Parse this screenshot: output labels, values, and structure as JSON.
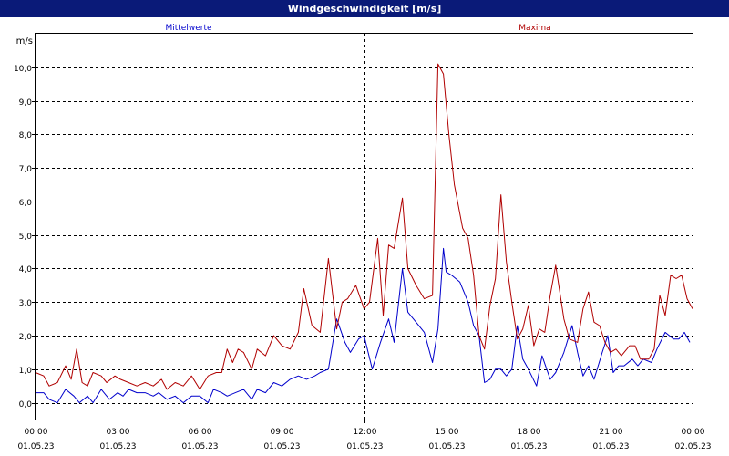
{
  "window": {
    "title": "Windgeschwindigkeit [m/s]"
  },
  "chart_data": {
    "type": "line",
    "title": "Windgeschwindigkeit [m/s]",
    "ylabel": "m/s",
    "ylim": [
      -0.5,
      11
    ],
    "yticks": [
      "0,0",
      "1,0",
      "2,0",
      "3,0",
      "4,0",
      "5,0",
      "6,0",
      "7,0",
      "8,0",
      "9,0",
      "10,0"
    ],
    "x_time_range_hours": [
      0,
      24
    ],
    "x_ticks": [
      {
        "time": "00:00",
        "date": "01.05.23"
      },
      {
        "time": "03:00",
        "date": "01.05.23"
      },
      {
        "time": "06:00",
        "date": "01.05.23"
      },
      {
        "time": "09:00",
        "date": "01.05.23"
      },
      {
        "time": "12:00",
        "date": "01.05.23"
      },
      {
        "time": "15:00",
        "date": "01.05.23"
      },
      {
        "time": "18:00",
        "date": "01.05.23"
      },
      {
        "time": "21:00",
        "date": "01.05.23"
      },
      {
        "time": "00:00",
        "date": "02.05.23"
      }
    ],
    "grid": true,
    "legend_placement": "top",
    "series": [
      {
        "name": "Mittelwerte",
        "color": "#0000cc",
        "points": [
          [
            0,
            0.3
          ],
          [
            0.3,
            0.3
          ],
          [
            0.5,
            0.1
          ],
          [
            0.8,
            0.0
          ],
          [
            1.1,
            0.4
          ],
          [
            1.4,
            0.2
          ],
          [
            1.6,
            0.0
          ],
          [
            1.9,
            0.2
          ],
          [
            2.1,
            0.0
          ],
          [
            2.4,
            0.4
          ],
          [
            2.7,
            0.1
          ],
          [
            3.0,
            0.3
          ],
          [
            3.2,
            0.2
          ],
          [
            3.4,
            0.4
          ],
          [
            3.7,
            0.3
          ],
          [
            4.0,
            0.3
          ],
          [
            4.3,
            0.2
          ],
          [
            4.5,
            0.3
          ],
          [
            4.8,
            0.1
          ],
          [
            5.1,
            0.2
          ],
          [
            5.4,
            0.0
          ],
          [
            5.7,
            0.2
          ],
          [
            6.0,
            0.2
          ],
          [
            6.3,
            0.0
          ],
          [
            6.5,
            0.4
          ],
          [
            6.8,
            0.3
          ],
          [
            7.0,
            0.2
          ],
          [
            7.3,
            0.3
          ],
          [
            7.6,
            0.4
          ],
          [
            7.9,
            0.1
          ],
          [
            8.1,
            0.4
          ],
          [
            8.4,
            0.3
          ],
          [
            8.7,
            0.6
          ],
          [
            9.0,
            0.5
          ],
          [
            9.3,
            0.7
          ],
          [
            9.6,
            0.8
          ],
          [
            9.9,
            0.7
          ],
          [
            10.2,
            0.8
          ],
          [
            10.4,
            0.9
          ],
          [
            10.7,
            1.0
          ],
          [
            11.0,
            2.5
          ],
          [
            11.3,
            1.8
          ],
          [
            11.5,
            1.5
          ],
          [
            11.8,
            1.9
          ],
          [
            12.0,
            2.0
          ],
          [
            12.3,
            1.0
          ],
          [
            12.6,
            1.8
          ],
          [
            12.9,
            2.5
          ],
          [
            13.1,
            1.8
          ],
          [
            13.4,
            4.0
          ],
          [
            13.6,
            2.7
          ],
          [
            13.9,
            2.4
          ],
          [
            14.2,
            2.1
          ],
          [
            14.5,
            1.2
          ],
          [
            14.7,
            2.2
          ],
          [
            14.9,
            4.6
          ],
          [
            15.0,
            3.9
          ],
          [
            15.2,
            3.8
          ],
          [
            15.5,
            3.6
          ],
          [
            15.8,
            3.0
          ],
          [
            16.0,
            2.3
          ],
          [
            16.2,
            2.0
          ],
          [
            16.4,
            0.6
          ],
          [
            16.6,
            0.7
          ],
          [
            16.8,
            1.0
          ],
          [
            17.0,
            1.0
          ],
          [
            17.2,
            0.8
          ],
          [
            17.4,
            1.0
          ],
          [
            17.6,
            2.3
          ],
          [
            17.8,
            1.3
          ],
          [
            18.0,
            1.0
          ],
          [
            18.3,
            0.5
          ],
          [
            18.5,
            1.4
          ],
          [
            18.8,
            0.7
          ],
          [
            19.0,
            0.9
          ],
          [
            19.3,
            1.5
          ],
          [
            19.6,
            2.3
          ],
          [
            19.8,
            1.5
          ],
          [
            20.0,
            0.8
          ],
          [
            20.2,
            1.1
          ],
          [
            20.4,
            0.7
          ],
          [
            20.7,
            1.5
          ],
          [
            20.9,
            2.0
          ],
          [
            21.1,
            0.9
          ],
          [
            21.3,
            1.1
          ],
          [
            21.5,
            1.1
          ],
          [
            21.8,
            1.3
          ],
          [
            22.0,
            1.1
          ],
          [
            22.2,
            1.3
          ],
          [
            22.5,
            1.2
          ],
          [
            22.7,
            1.6
          ],
          [
            23.0,
            2.1
          ],
          [
            23.3,
            1.9
          ],
          [
            23.5,
            1.9
          ],
          [
            23.7,
            2.1
          ],
          [
            23.9,
            1.8
          ]
        ]
      },
      {
        "name": "Maxima",
        "color": "#b00000",
        "points": [
          [
            0,
            0.9
          ],
          [
            0.3,
            0.8
          ],
          [
            0.5,
            0.5
          ],
          [
            0.8,
            0.6
          ],
          [
            1.1,
            1.1
          ],
          [
            1.3,
            0.7
          ],
          [
            1.5,
            1.6
          ],
          [
            1.7,
            0.6
          ],
          [
            1.9,
            0.5
          ],
          [
            2.1,
            0.9
          ],
          [
            2.4,
            0.8
          ],
          [
            2.6,
            0.6
          ],
          [
            2.9,
            0.8
          ],
          [
            3.1,
            0.7
          ],
          [
            3.4,
            0.6
          ],
          [
            3.7,
            0.5
          ],
          [
            4.0,
            0.6
          ],
          [
            4.3,
            0.5
          ],
          [
            4.6,
            0.7
          ],
          [
            4.8,
            0.4
          ],
          [
            5.1,
            0.6
          ],
          [
            5.4,
            0.5
          ],
          [
            5.7,
            0.8
          ],
          [
            6.0,
            0.4
          ],
          [
            6.3,
            0.8
          ],
          [
            6.6,
            0.9
          ],
          [
            6.8,
            0.9
          ],
          [
            7.0,
            1.6
          ],
          [
            7.2,
            1.2
          ],
          [
            7.4,
            1.6
          ],
          [
            7.6,
            1.5
          ],
          [
            7.9,
            1.0
          ],
          [
            8.1,
            1.6
          ],
          [
            8.4,
            1.4
          ],
          [
            8.7,
            2.0
          ],
          [
            9.0,
            1.7
          ],
          [
            9.3,
            1.6
          ],
          [
            9.6,
            2.1
          ],
          [
            9.8,
            3.4
          ],
          [
            10.1,
            2.3
          ],
          [
            10.4,
            2.1
          ],
          [
            10.7,
            4.3
          ],
          [
            11.0,
            2.2
          ],
          [
            11.2,
            3.0
          ],
          [
            11.4,
            3.1
          ],
          [
            11.7,
            3.5
          ],
          [
            12.0,
            2.8
          ],
          [
            12.2,
            3.0
          ],
          [
            12.5,
            4.9
          ],
          [
            12.7,
            2.6
          ],
          [
            12.9,
            4.7
          ],
          [
            13.1,
            4.6
          ],
          [
            13.4,
            6.1
          ],
          [
            13.6,
            4.0
          ],
          [
            13.9,
            3.5
          ],
          [
            14.2,
            3.1
          ],
          [
            14.5,
            3.2
          ],
          [
            14.7,
            10.1
          ],
          [
            14.9,
            9.8
          ],
          [
            15.1,
            8.0
          ],
          [
            15.3,
            6.5
          ],
          [
            15.6,
            5.2
          ],
          [
            15.8,
            4.9
          ],
          [
            16.0,
            3.8
          ],
          [
            16.2,
            2.0
          ],
          [
            16.4,
            1.6
          ],
          [
            16.6,
            2.9
          ],
          [
            16.8,
            3.7
          ],
          [
            17.0,
            6.2
          ],
          [
            17.2,
            4.2
          ],
          [
            17.4,
            3.0
          ],
          [
            17.6,
            1.9
          ],
          [
            17.8,
            2.2
          ],
          [
            18.0,
            2.9
          ],
          [
            18.2,
            1.7
          ],
          [
            18.4,
            2.2
          ],
          [
            18.6,
            2.1
          ],
          [
            18.8,
            3.2
          ],
          [
            19.0,
            4.1
          ],
          [
            19.3,
            2.5
          ],
          [
            19.5,
            1.9
          ],
          [
            19.8,
            1.8
          ],
          [
            20.0,
            2.8
          ],
          [
            20.2,
            3.3
          ],
          [
            20.4,
            2.4
          ],
          [
            20.6,
            2.3
          ],
          [
            20.8,
            1.8
          ],
          [
            21.0,
            1.5
          ],
          [
            21.2,
            1.6
          ],
          [
            21.4,
            1.4
          ],
          [
            21.7,
            1.7
          ],
          [
            21.9,
            1.7
          ],
          [
            22.1,
            1.3
          ],
          [
            22.4,
            1.3
          ],
          [
            22.6,
            1.6
          ],
          [
            22.8,
            3.2
          ],
          [
            23.0,
            2.6
          ],
          [
            23.2,
            3.8
          ],
          [
            23.4,
            3.7
          ],
          [
            23.6,
            3.8
          ],
          [
            23.8,
            3.1
          ],
          [
            24.0,
            2.8
          ]
        ]
      }
    ]
  }
}
